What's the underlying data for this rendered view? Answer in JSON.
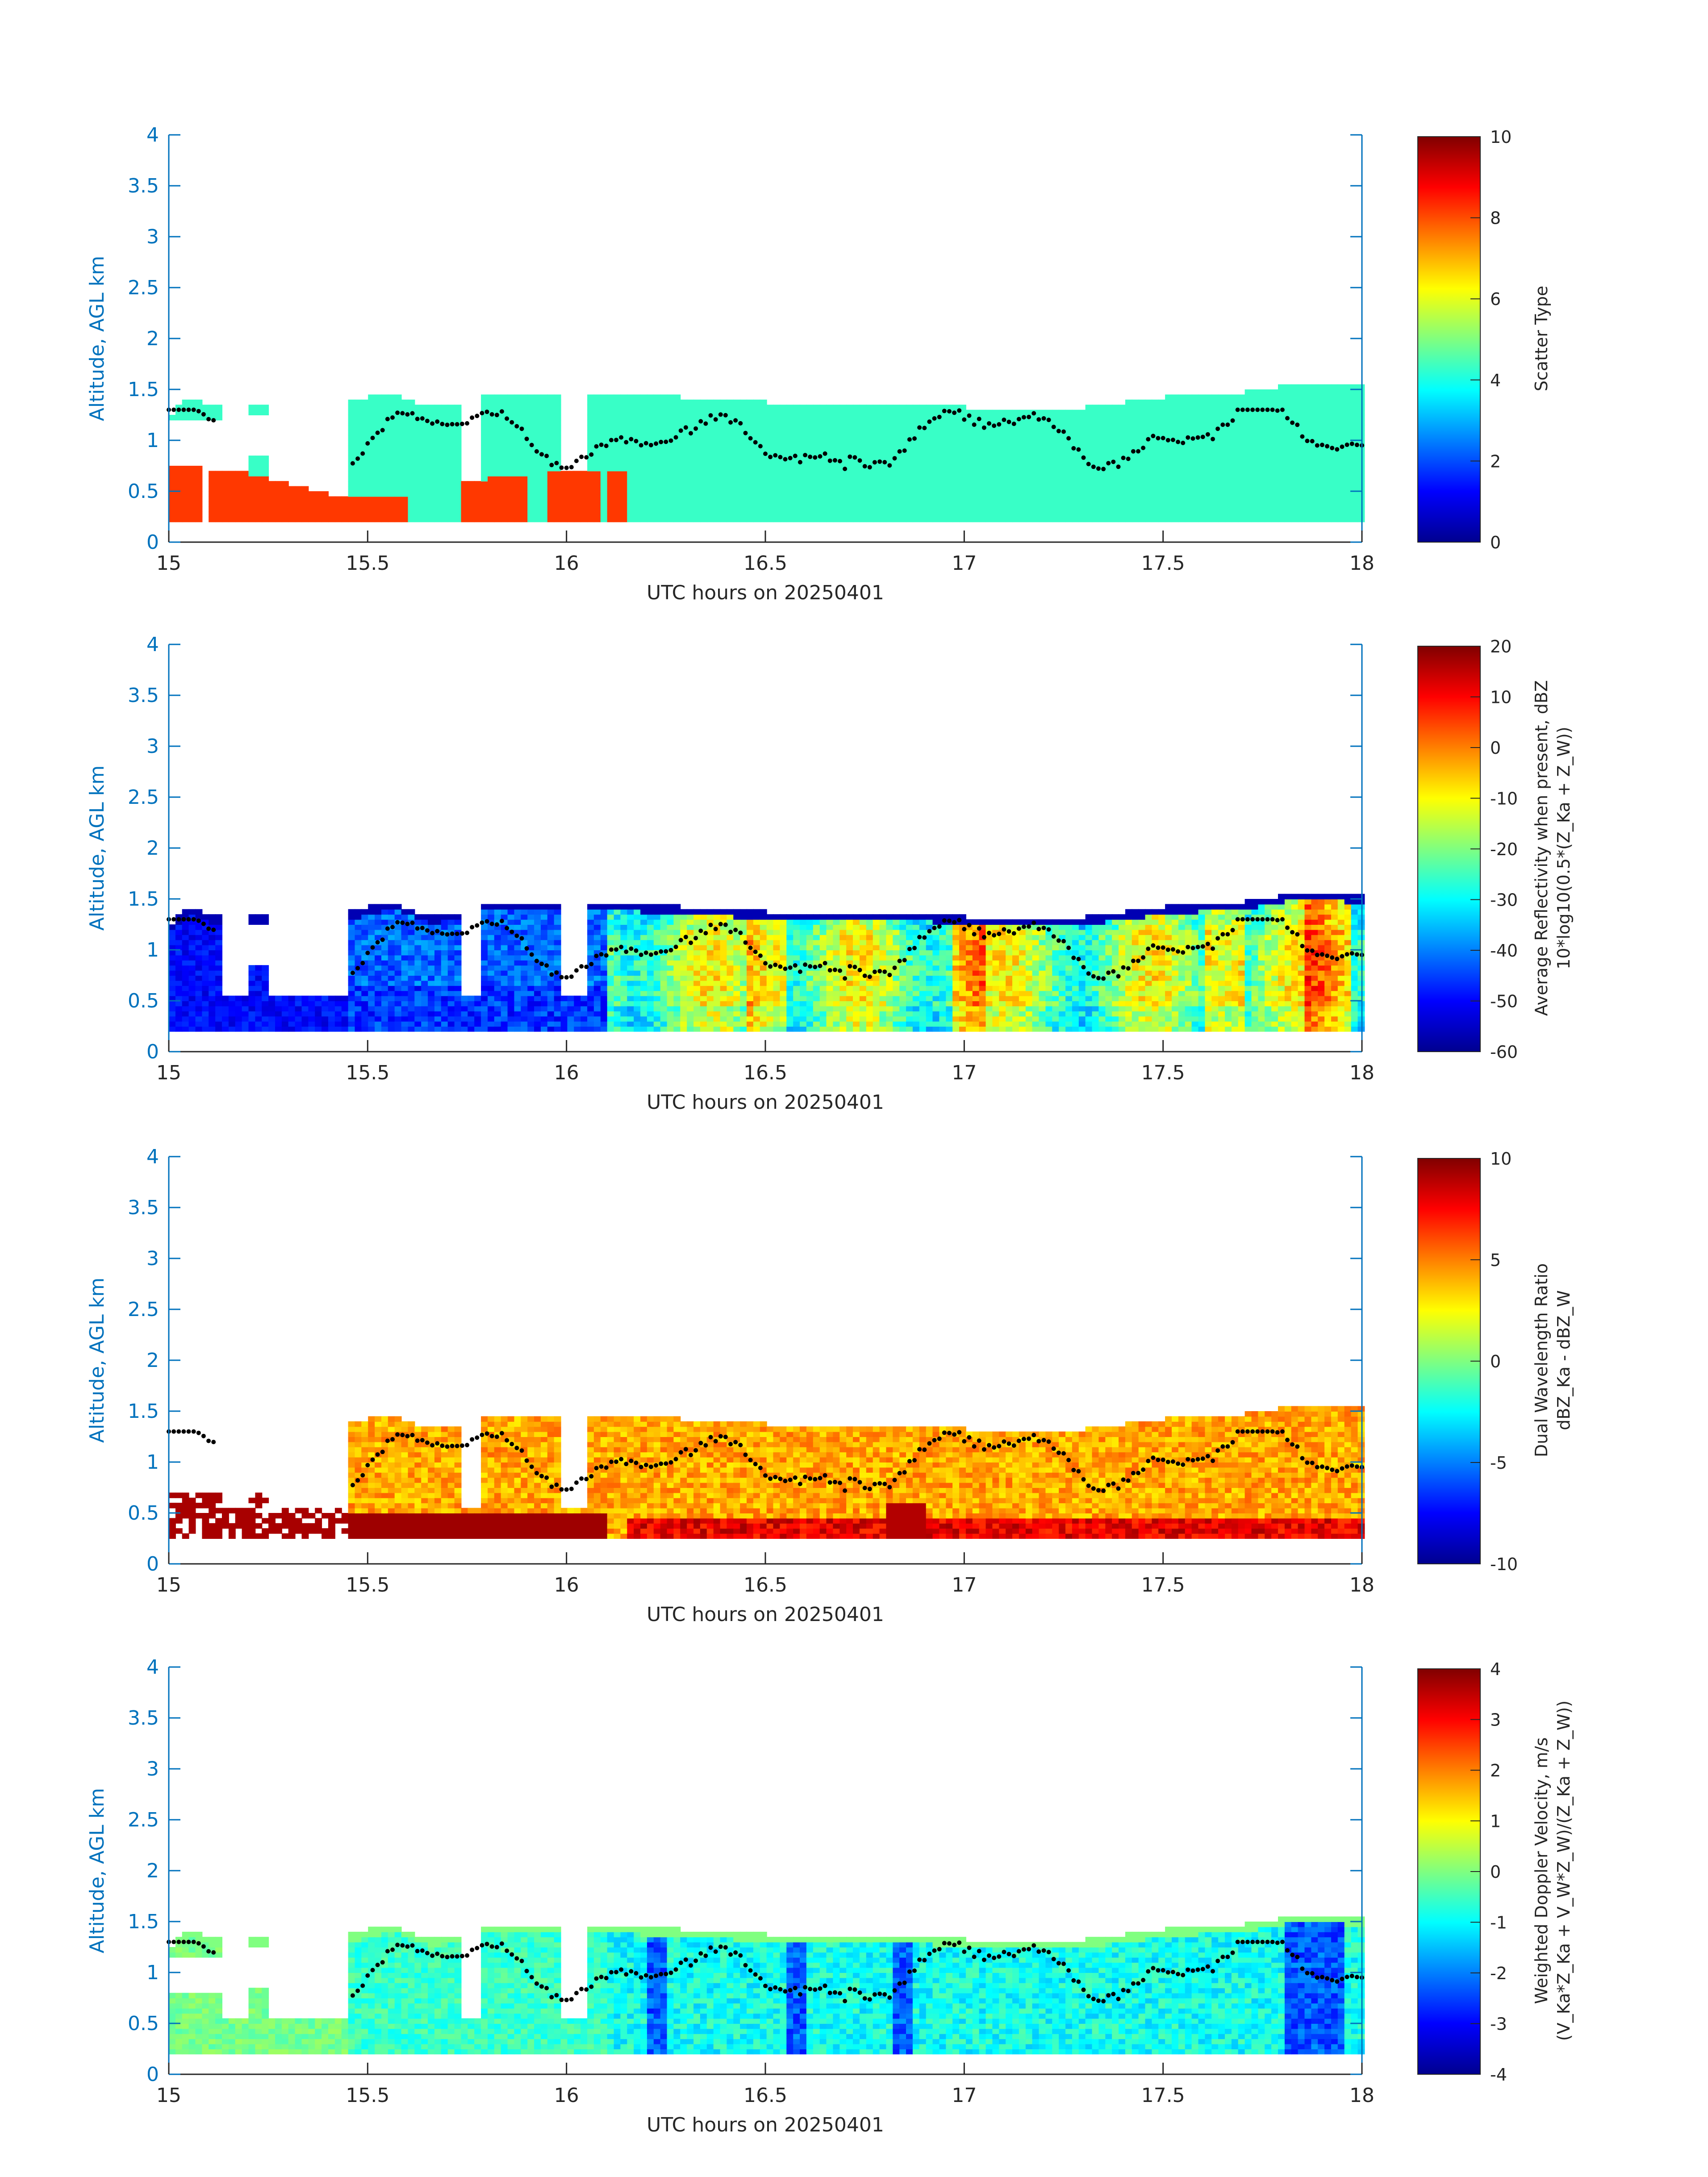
{
  "figure": {
    "background": "#ffffff",
    "axis_color": "#0072bd",
    "colormap": "jet",
    "panel_count": 4
  },
  "chart_data": [
    {
      "type": "heatmap",
      "xlabel": "UTC hours on 20250401",
      "ylabel": "Altitude, AGL km",
      "xlim": [
        15,
        18
      ],
      "ylim": [
        0,
        4
      ],
      "xticks": [
        "15",
        "15.5",
        "16",
        "16.5",
        "17",
        "17.5",
        "18"
      ],
      "yticks": [
        "0",
        "0.5",
        "1",
        "1.5",
        "2",
        "2.5",
        "3",
        "3.5",
        "4"
      ],
      "colorbar": {
        "label_lines": [
          "Scatter Type"
        ],
        "range": [
          0,
          10
        ],
        "ticks": [
          "0",
          "2",
          "4",
          "6",
          "8",
          "10"
        ]
      },
      "overlay": "cloud-top-height-dots",
      "fields": {
        "echo_base_km": 0.2,
        "cloud_top_km": [
          1.25,
          1.35,
          1.3,
          1.3,
          1.25,
          1.45,
          1.25,
          1.3,
          1.35,
          1.5
        ],
        "cloud_top_hours": [
          15.0,
          15.5,
          16.0,
          16.5,
          17.0,
          17.3,
          17.5,
          17.7,
          17.9,
          18.0
        ],
        "scatter_type_lower_layer": 8.2,
        "scatter_type_lower_layer_time_range": [
          15.0,
          16.15
        ],
        "scatter_type_lower_layer_top_km": [
          0.75,
          0.6,
          0.45,
          0.55,
          0.65,
          0.7
        ],
        "scatter_type_cloud": 4.3
      }
    },
    {
      "type": "heatmap",
      "xlabel": "UTC hours on 20250401",
      "ylabel": "Altitude, AGL km",
      "xlim": [
        15,
        18
      ],
      "ylim": [
        0,
        4
      ],
      "xticks": [
        "15",
        "15.5",
        "16",
        "16.5",
        "17",
        "17.5",
        "18"
      ],
      "yticks": [
        "0",
        "0.5",
        "1",
        "1.5",
        "2",
        "2.5",
        "3",
        "3.5",
        "4"
      ],
      "colorbar": {
        "label_lines": [
          "Average Reflectivity when present, dBZ",
          "10*log10(0.5*(Z_Ka + Z_W))"
        ],
        "range": [
          -60,
          20
        ],
        "ticks": [
          "-60",
          "-50",
          "-40",
          "-30",
          "-20",
          "-10",
          "0",
          "10",
          "20"
        ]
      },
      "overlay": "cloud-top-height-dots",
      "fields": {
        "reflectivity_early_dbz": -52,
        "reflectivity_main_dbz": -25,
        "reflectivity_core_dbz": -8
      }
    },
    {
      "type": "heatmap",
      "xlabel": "UTC hours on 20250401",
      "ylabel": "Altitude, AGL km",
      "xlim": [
        15,
        18
      ],
      "ylim": [
        0,
        4
      ],
      "xticks": [
        "15",
        "15.5",
        "16",
        "16.5",
        "17",
        "17.5",
        "18"
      ],
      "yticks": [
        "0",
        "0.5",
        "1",
        "1.5",
        "2",
        "2.5",
        "3",
        "3.5",
        "4"
      ],
      "colorbar": {
        "label_lines": [
          "Dual Wavelength Ratio",
          "dBZ_Ka - dBZ_W"
        ],
        "range": [
          -10,
          10
        ],
        "ticks": [
          "-10",
          "-5",
          "0",
          "5",
          "10"
        ]
      },
      "overlay": "cloud-top-height-dots",
      "fields": {
        "dwr_main_db": 3.5,
        "dwr_base_db": 9.5,
        "echo_base_km": 0.25
      }
    },
    {
      "type": "heatmap",
      "xlabel": "UTC hours on 20250401",
      "ylabel": "Altitude, AGL km",
      "xlim": [
        15,
        18
      ],
      "ylim": [
        0,
        4
      ],
      "xticks": [
        "15",
        "15.5",
        "16",
        "16.5",
        "17",
        "17.5",
        "18"
      ],
      "yticks": [
        "0",
        "0.5",
        "1",
        "1.5",
        "2",
        "2.5",
        "3",
        "3.5",
        "4"
      ],
      "colorbar": {
        "label_lines": [
          "Weighted Doppler Velocity, m/s",
          "(V_Ka*Z_Ka + V_W*Z_W)/(Z_Ka + Z_W))"
        ],
        "range": [
          -4,
          4
        ],
        "ticks": [
          "-4",
          "-3",
          "-2",
          "-1",
          "0",
          "1",
          "2",
          "3",
          "4"
        ]
      },
      "overlay": "cloud-top-height-dots",
      "fields": {
        "velocity_early_ms": -0.3,
        "velocity_main_ms": -1.3,
        "velocity_downdraft_ms": -2.6
      }
    }
  ]
}
